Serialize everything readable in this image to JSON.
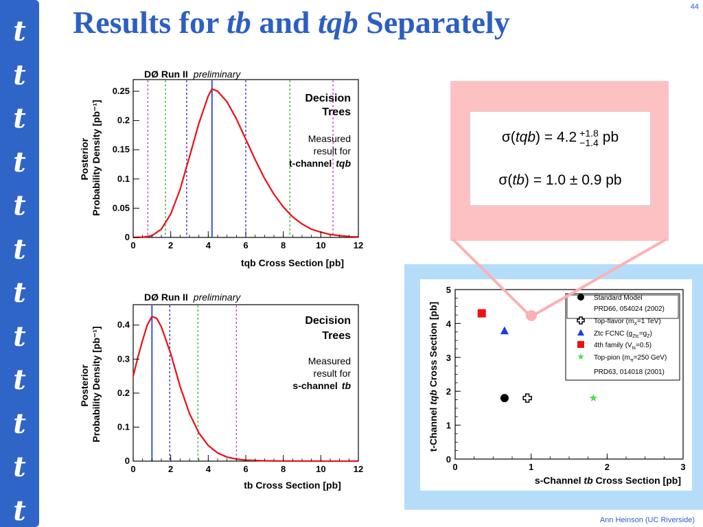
{
  "slide": {
    "title_parts": [
      "Results for ",
      "tb",
      " and ",
      "tqb",
      " Separately"
    ],
    "page_number": "44",
    "footer": "Ann Heinson   (UC Riverside)",
    "sidebar_glyph": "t",
    "sidebar_glyph_count": 12,
    "colors": {
      "title": "#2d5fc2",
      "sidebar": "#2f65c6",
      "curve": "#e8161c",
      "pink_panel": "#fdc1c4",
      "blue_panel": "#b5ddfa"
    }
  },
  "results": {
    "tqb": {
      "symbol": "σ(",
      "process": "tqb",
      "close": ")",
      "value": "= 4.2",
      "plus": "+1.8",
      "minus": "−1.4",
      "unit": "pb"
    },
    "tb": {
      "symbol": "σ(",
      "process": "tb",
      "close": ")",
      "value": "= 1.0 ± 0.9 pb"
    }
  },
  "chart_data": [
    {
      "type": "line",
      "header": "DØ Run II",
      "header_italic": "preliminary",
      "xlabel": "tqb Cross Section  [pb]",
      "ylabel": [
        "Posterior",
        "Probability Density  [pb⁻¹]"
      ],
      "xlim": [
        0,
        12
      ],
      "ylim": [
        0,
        0.27
      ],
      "xticks": [
        0,
        2,
        4,
        6,
        8,
        10,
        12
      ],
      "yticks": [
        0,
        0.05,
        0.1,
        0.15,
        0.2,
        0.25
      ],
      "ytick_labels": [
        "0",
        "0.05",
        "0.1",
        "0.15",
        "0.2",
        "0.25"
      ],
      "annotation": [
        "Decision",
        "Trees"
      ],
      "annotation2": [
        "Measured",
        "result for"
      ],
      "annotation2_bold": "t-channel",
      "annotation2_italic": "tqb",
      "curve": {
        "color": "#e8161c",
        "points": [
          [
            0,
            0
          ],
          [
            0.5,
            0.0003
          ],
          [
            1,
            0.003
          ],
          [
            1.5,
            0.014
          ],
          [
            2,
            0.04
          ],
          [
            2.5,
            0.082
          ],
          [
            3,
            0.138
          ],
          [
            3.5,
            0.195
          ],
          [
            4,
            0.242
          ],
          [
            4.2,
            0.254
          ],
          [
            4.5,
            0.25
          ],
          [
            5,
            0.232
          ],
          [
            5.5,
            0.203
          ],
          [
            6,
            0.168
          ],
          [
            6.5,
            0.133
          ],
          [
            7,
            0.101
          ],
          [
            7.5,
            0.074
          ],
          [
            8,
            0.052
          ],
          [
            8.5,
            0.035
          ],
          [
            9,
            0.023
          ],
          [
            9.5,
            0.014
          ],
          [
            10,
            0.009
          ],
          [
            10.5,
            0.005
          ],
          [
            11,
            0.003
          ],
          [
            11.5,
            0.0015
          ],
          [
            12,
            0.0008
          ]
        ]
      },
      "vlines": [
        {
          "x": 0.78,
          "color": "#cc33cc",
          "style": "dashed"
        },
        {
          "x": 1.72,
          "color": "#33aa33",
          "style": "dashed"
        },
        {
          "x": 2.85,
          "color": "#2222bb",
          "style": "dashed"
        },
        {
          "x": 4.2,
          "color": "#3355ee",
          "style": "solid"
        },
        {
          "x": 6.0,
          "color": "#2222bb",
          "style": "dashed"
        },
        {
          "x": 8.35,
          "color": "#33aa33",
          "style": "dashed"
        },
        {
          "x": 10.65,
          "color": "#cc33cc",
          "style": "dashed"
        }
      ]
    },
    {
      "type": "line",
      "header": "DØ Run II",
      "header_italic": "preliminary",
      "xlabel": "tb Cross Section  [pb]",
      "ylabel": [
        "Posterior",
        "Probability Density  [pb⁻¹]"
      ],
      "xlim": [
        0,
        12
      ],
      "ylim": [
        0,
        0.46
      ],
      "xticks": [
        0,
        2,
        4,
        6,
        8,
        10,
        12
      ],
      "yticks": [
        0,
        0.1,
        0.2,
        0.3,
        0.4
      ],
      "ytick_labels": [
        "0",
        "0.1",
        "0.2",
        "0.3",
        "0.4"
      ],
      "annotation": [
        "Decision",
        "Trees"
      ],
      "annotation2": [
        "Measured",
        "result for"
      ],
      "annotation2_bold": "s-channel",
      "annotation2_italic": "tb",
      "curve": {
        "color": "#e8161c",
        "points": [
          [
            0,
            0.25
          ],
          [
            0.25,
            0.305
          ],
          [
            0.5,
            0.355
          ],
          [
            0.75,
            0.4
          ],
          [
            1.0,
            0.425
          ],
          [
            1.25,
            0.42
          ],
          [
            1.5,
            0.395
          ],
          [
            2.0,
            0.316
          ],
          [
            2.5,
            0.22
          ],
          [
            3.0,
            0.14
          ],
          [
            3.5,
            0.083
          ],
          [
            4.0,
            0.046
          ],
          [
            4.5,
            0.024
          ],
          [
            5.0,
            0.012
          ],
          [
            5.5,
            0.006
          ],
          [
            6.0,
            0.003
          ],
          [
            7.0,
            0.001
          ],
          [
            8.0,
            0.0003
          ],
          [
            10.0,
            0
          ],
          [
            12.0,
            0
          ]
        ]
      },
      "vlines": [
        {
          "x": 1.0,
          "color": "#3355ee",
          "style": "solid"
        },
        {
          "x": 1.95,
          "color": "#2222bb",
          "style": "dashed"
        },
        {
          "x": 3.45,
          "color": "#33aa33",
          "style": "dashed"
        },
        {
          "x": 5.5,
          "color": "#cc33cc",
          "style": "dashed"
        }
      ]
    },
    {
      "type": "scatter",
      "xlabel_parts": [
        "s-Channel ",
        "tb",
        " Cross Section  [pb]"
      ],
      "ylabel_parts": [
        "t-Channel ",
        "tqb",
        " Cross Section  [pb]"
      ],
      "xlim": [
        0,
        3
      ],
      "ylim": [
        0,
        5
      ],
      "xticks": [
        0,
        1,
        2,
        3
      ],
      "yticks": [
        0,
        1,
        2,
        3,
        4,
        5
      ],
      "points": [
        {
          "name": "Standard Model",
          "x": 0.65,
          "y": 1.8,
          "marker": "circle",
          "color": "#000000"
        },
        {
          "name": "Top-flavor",
          "x": 0.95,
          "y": 1.8,
          "marker": "cross-open",
          "color": "#000000"
        },
        {
          "name": "Ztc FCNC",
          "x": 0.65,
          "y": 3.78,
          "marker": "triangle",
          "color": "#1a3ee0"
        },
        {
          "name": "4th family",
          "x": 0.35,
          "y": 4.3,
          "marker": "square",
          "color": "#ee1111"
        },
        {
          "name": "Top-pion",
          "x": 1.82,
          "y": 1.8,
          "marker": "star",
          "color": "#55dd55"
        }
      ],
      "legend": [
        {
          "marker": "circle",
          "color": "#000000",
          "text": "Standard Model"
        },
        {
          "marker": "none",
          "text": "PRD66, 054024 (2002)"
        },
        {
          "marker": "cross-open",
          "color": "#000000",
          "text": "Top-flavor  (m",
          "sub": "X",
          "text_after": "=1 TeV)"
        },
        {
          "marker": "triangle",
          "color": "#1a3ee0",
          "text": "Ztc FCNC  (g",
          "sub": "Ztc",
          "text_after": "=g",
          "sub2": "Z",
          "text_after2": ")"
        },
        {
          "marker": "square",
          "color": "#ee1111",
          "text": "4th family  (V",
          "sub": "ts",
          "text_after": "=0.5)"
        },
        {
          "marker": "star",
          "color": "#55dd55",
          "text": "Top-pion  (m",
          "sub": "π",
          "text_after": "=250 GeV)"
        },
        {
          "marker": "none",
          "text": "PRD63, 014018 (2001)"
        }
      ],
      "highlight": {
        "x": 1.0,
        "y": 4.2
      }
    }
  ]
}
